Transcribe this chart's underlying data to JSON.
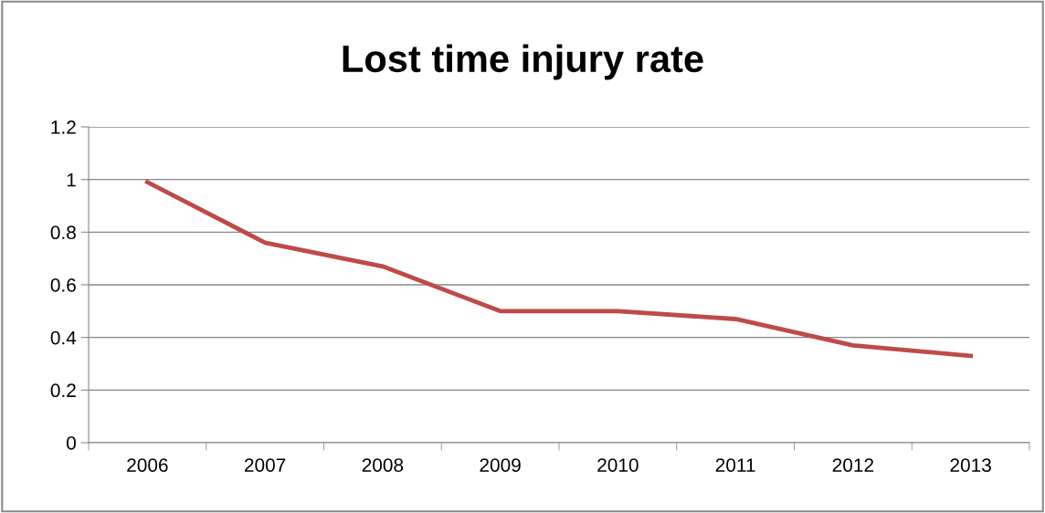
{
  "chart_data": {
    "type": "line",
    "title": "Lost time injury rate",
    "categories": [
      "2006",
      "2007",
      "2008",
      "2009",
      "2010",
      "2011",
      "2012",
      "2013"
    ],
    "series": [
      {
        "color": "#be4b48",
        "values": [
          0.99,
          0.76,
          0.67,
          0.5,
          0.5,
          0.47,
          0.37,
          0.33
        ]
      }
    ],
    "ylim": [
      0,
      1.2
    ],
    "yticks": [
      0,
      0.2,
      0.4,
      0.6,
      0.8,
      1,
      1.2
    ],
    "grid": "y",
    "marker": "none",
    "line_style": "solid"
  }
}
